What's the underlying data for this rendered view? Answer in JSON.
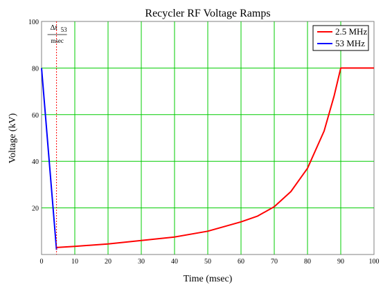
{
  "chart_data": {
    "type": "line",
    "title": "Recycler RF Voltage Ramps",
    "xlabel": "Time (msec)",
    "ylabel": "Voltage (kV)",
    "xlim": [
      0,
      100
    ],
    "ylim": [
      0,
      100
    ],
    "xticks": [
      0,
      10,
      20,
      30,
      40,
      50,
      60,
      70,
      80,
      90,
      100
    ],
    "yticks": [
      20,
      40,
      60,
      80,
      100
    ],
    "grid": true,
    "legend_position": "top-right",
    "series": [
      {
        "name": "2.5 MHz",
        "color": "#ff0000",
        "x": [
          4.5,
          10,
          20,
          30,
          40,
          50,
          60,
          65,
          70,
          75,
          80,
          85,
          88,
          90,
          91,
          100
        ],
        "y": [
          3,
          3.5,
          4.5,
          6,
          7.5,
          10,
          14,
          16.5,
          20.5,
          27,
          37,
          53,
          68,
          80,
          80,
          80
        ]
      },
      {
        "name": "53 MHz",
        "color": "#0000ff",
        "x": [
          0,
          4.5
        ],
        "y": [
          80,
          2
        ]
      }
    ],
    "annotations": [
      {
        "type": "vline",
        "x": 4.5,
        "color": "#ff0000",
        "style": "dotted",
        "label_top": "Δt",
        "label_sub": "53",
        "label_bottom": "msec"
      }
    ]
  }
}
